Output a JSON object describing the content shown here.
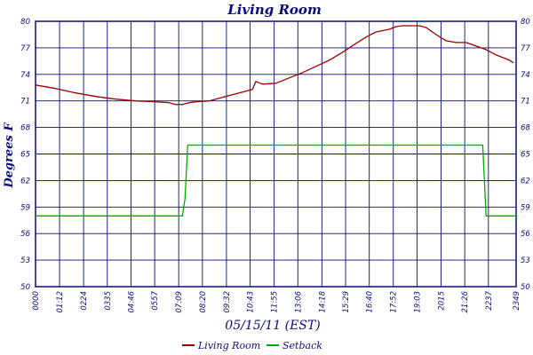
{
  "chart_data": {
    "type": "line",
    "title": "Living Room",
    "xlabel": "05/15/11 (EST)",
    "ylabel": "Degrees F",
    "xlim": [
      0,
      1440
    ],
    "ylim": [
      50,
      80
    ],
    "x_ticks": [
      {
        "min": 0,
        "label": "0000"
      },
      {
        "min": 72,
        "label": "01:12"
      },
      {
        "min": 144,
        "label": "0224"
      },
      {
        "min": 215,
        "label": "0335"
      },
      {
        "min": 286,
        "label": "04:46"
      },
      {
        "min": 357,
        "label": "0557"
      },
      {
        "min": 429,
        "label": "07:09"
      },
      {
        "min": 500,
        "label": "08:20"
      },
      {
        "min": 572,
        "label": "09:32"
      },
      {
        "min": 643,
        "label": "10:43"
      },
      {
        "min": 715,
        "label": "11:55"
      },
      {
        "min": 786,
        "label": "13:06"
      },
      {
        "min": 858,
        "label": "14:18"
      },
      {
        "min": 929,
        "label": "15:29"
      },
      {
        "min": 1000,
        "label": "16:40"
      },
      {
        "min": 1072,
        "label": "17:52"
      },
      {
        "min": 1143,
        "label": "19:03"
      },
      {
        "min": 1215,
        "label": "2015"
      },
      {
        "min": 1286,
        "label": "21:26"
      },
      {
        "min": 1357,
        "label": "2237"
      },
      {
        "min": 1440,
        "label": "2349"
      }
    ],
    "y_ticks_left": [
      "50",
      "53",
      "56",
      "59",
      "62",
      "65",
      "68",
      "71",
      "74",
      "77",
      "80"
    ],
    "y_ticks_right": [
      "50",
      "53",
      "56",
      "59",
      "62",
      "65",
      "68",
      "71",
      "74",
      "77",
      "80"
    ],
    "grid": true,
    "legend_position": "bottom",
    "series": [
      {
        "name": "Living Room",
        "color": "#990000",
        "x": [
          0,
          60,
          120,
          180,
          240,
          300,
          360,
          400,
          420,
          440,
          460,
          480,
          520,
          550,
          600,
          630,
          650,
          660,
          680,
          720,
          760,
          800,
          840,
          880,
          920,
          960,
          990,
          1020,
          1060,
          1080,
          1100,
          1120,
          1150,
          1170,
          1200,
          1230,
          1260,
          1290,
          1320,
          1350,
          1380,
          1400,
          1420,
          1432
        ],
        "y": [
          72.8,
          72.4,
          71.9,
          71.5,
          71.2,
          71.0,
          70.9,
          70.8,
          70.6,
          70.6,
          70.8,
          70.9,
          71.0,
          71.3,
          71.8,
          72.1,
          72.3,
          73.2,
          72.9,
          73.0,
          73.6,
          74.2,
          74.9,
          75.6,
          76.5,
          77.5,
          78.2,
          78.8,
          79.1,
          79.4,
          79.5,
          79.5,
          79.5,
          79.3,
          78.5,
          77.8,
          77.6,
          77.6,
          77.2,
          76.8,
          76.2,
          75.9,
          75.6,
          75.3
        ]
      },
      {
        "name": "Setback",
        "color": "#00aa00",
        "x": [
          0,
          440,
          448,
          456,
          500,
          1340,
          1345,
          1350,
          1440
        ],
        "y": [
          58,
          58,
          60,
          66,
          66,
          66,
          62,
          58,
          58
        ]
      }
    ],
    "legend": [
      "Living Room",
      "Setback"
    ]
  }
}
